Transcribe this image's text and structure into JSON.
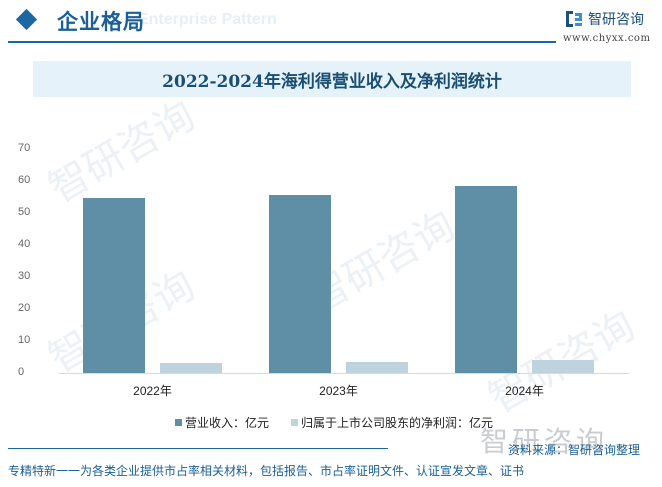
{
  "header": {
    "title": "企业格局",
    "ghost_text": "Enterprise Pattern",
    "logo_name": "智研咨询",
    "logo_url": "www.chyxx.com"
  },
  "chart_title": "2022-2024年海利得营业收入及净利润统计",
  "chart_data": {
    "type": "bar",
    "title": "2022-2024年海利得营业收入及净利润统计",
    "categories": [
      "2022年",
      "2023年",
      "2024年"
    ],
    "series": [
      {
        "name": "营业收入：亿元",
        "color": "#5e8fa7",
        "values": [
          54.8,
          55.7,
          58.5
        ]
      },
      {
        "name": "归属于上市公司股东的净利润：亿元",
        "color": "#bed3dd",
        "values": [
          3.1,
          3.4,
          4.0
        ]
      }
    ],
    "xlabel": "",
    "ylabel": "",
    "ylim": [
      0,
      70
    ],
    "yticks": [
      0,
      10,
      20,
      30,
      40,
      50,
      60,
      70
    ],
    "grid": false,
    "legend_position": "bottom"
  },
  "legend": {
    "revenue": "营业收入：亿元",
    "net_profit": "归属于上市公司股东的净利润：亿元"
  },
  "footer": {
    "source": "资料来源：智研咨询整理",
    "logo_ghost": "智研咨询",
    "slogan": "专精特新一一为各类企业提供市占率相关材料，包括报告、市占率证明文件、认证宣发文章、证书"
  }
}
